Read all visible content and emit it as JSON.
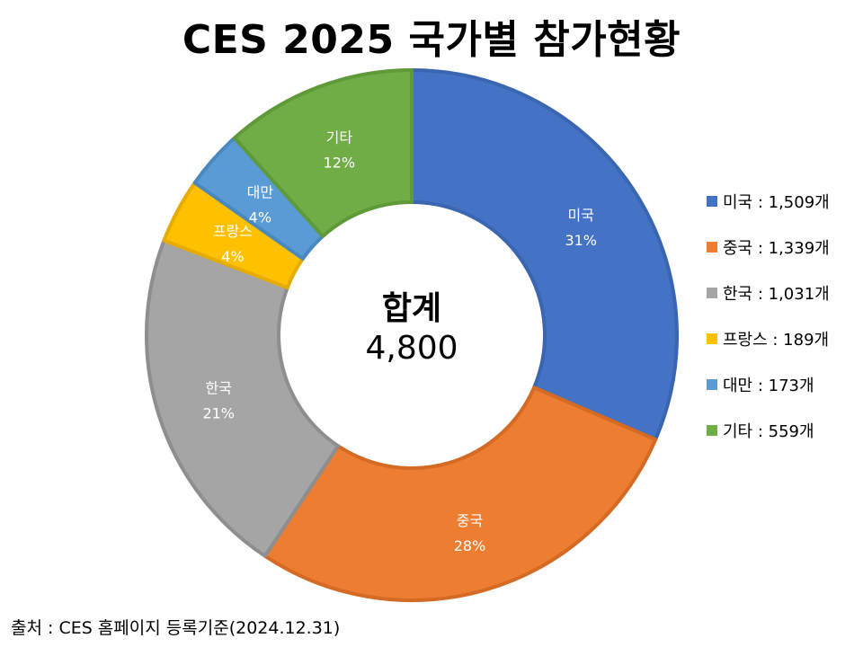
{
  "title": "CES 2025 국가별 참가현황",
  "center_label": {
    "line1": "합계",
    "line2": "4,800"
  },
  "source": "출처 : CES 홈페이지 등록기준(2024.12.31)",
  "chart_data": {
    "type": "pie",
    "donut": true,
    "title": "CES 2025 국가별 참가현황",
    "slices": [
      {
        "label": "미국",
        "pct_label": "31%",
        "value": 1509,
        "legend": "미국 : 1,509개",
        "color": "#4472C4",
        "border": "#3A65B0"
      },
      {
        "label": "중국",
        "pct_label": "28%",
        "value": 1339,
        "legend": "중국 : 1,339개",
        "color": "#ED7D31",
        "border": "#D46A24"
      },
      {
        "label": "한국",
        "pct_label": "21%",
        "value": 1031,
        "legend": "한국 : 1,031개",
        "color": "#A5A5A5",
        "border": "#8E8E8E"
      },
      {
        "label": "프랑스",
        "pct_label": "4%",
        "value": 189,
        "legend": "프랑스 : 189개",
        "color": "#FFC000",
        "border": "#E6AC00"
      },
      {
        "label": "대만",
        "pct_label": "4%",
        "value": 173,
        "legend": "대만 : 173개",
        "color": "#5B9BD5",
        "border": "#4A88C0"
      },
      {
        "label": "기타",
        "pct_label": "12%",
        "value": 559,
        "legend": "기타 : 559개",
        "color": "#70AD47",
        "border": "#5E9A38"
      }
    ],
    "total": 4800,
    "legend_position": "right"
  }
}
